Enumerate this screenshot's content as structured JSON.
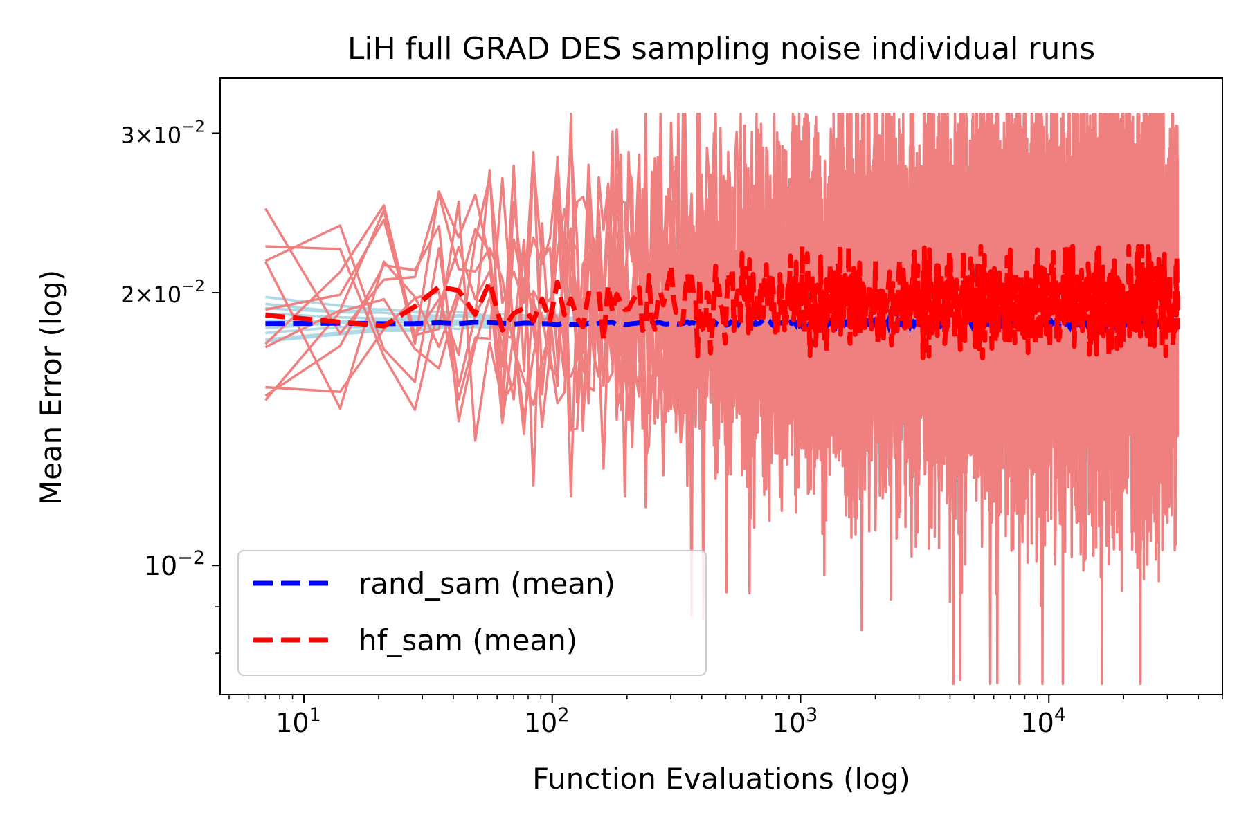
{
  "chart_data": {
    "type": "line",
    "title": "LiH full GRAD DES sampling noise individual runs",
    "xlabel": "Function Evaluations (log)",
    "ylabel": "Mean Error (log)",
    "xscale": "log",
    "yscale": "log",
    "xlim": [
      4.6,
      50000
    ],
    "ylim": [
      0.0072,
      0.0345
    ],
    "x_ticks": [
      {
        "value": 10,
        "base": "10",
        "exp": "1"
      },
      {
        "value": 100,
        "base": "10",
        "exp": "2"
      },
      {
        "value": 1000,
        "base": "10",
        "exp": "3"
      },
      {
        "value": 10000,
        "base": "10",
        "exp": "4"
      }
    ],
    "y_ticks": [
      {
        "value": 0.01,
        "mantissa": "",
        "base": "10",
        "exp": "−2"
      },
      {
        "value": 0.02,
        "mantissa": "2×",
        "base": "10",
        "exp": "−2"
      },
      {
        "value": 0.03,
        "mantissa": "3×",
        "base": "10",
        "exp": "−2"
      }
    ],
    "grid": false,
    "legend_position": "lower-left",
    "series": [
      {
        "name": "rand_sam (mean)",
        "color": "#0000ff",
        "linestyle": "dashed",
        "individual_runs_color": "#add8e6",
        "x_range": [
          7,
          33000
        ],
        "mean_value": 0.0185,
        "individual_runs_range": [
          0.0175,
          0.0198
        ]
      },
      {
        "name": "hf_sam (mean)",
        "color": "#ff0000",
        "linestyle": "dashed",
        "individual_runs_color": "#f08080",
        "x_range": [
          7,
          33000
        ],
        "mean_value_start": 0.0197,
        "mean_value_end": 0.0195,
        "mean_fluctuation_range": [
          0.0162,
          0.0225
        ],
        "individual_runs_range": [
          0.0074,
          0.0315
        ]
      }
    ]
  }
}
